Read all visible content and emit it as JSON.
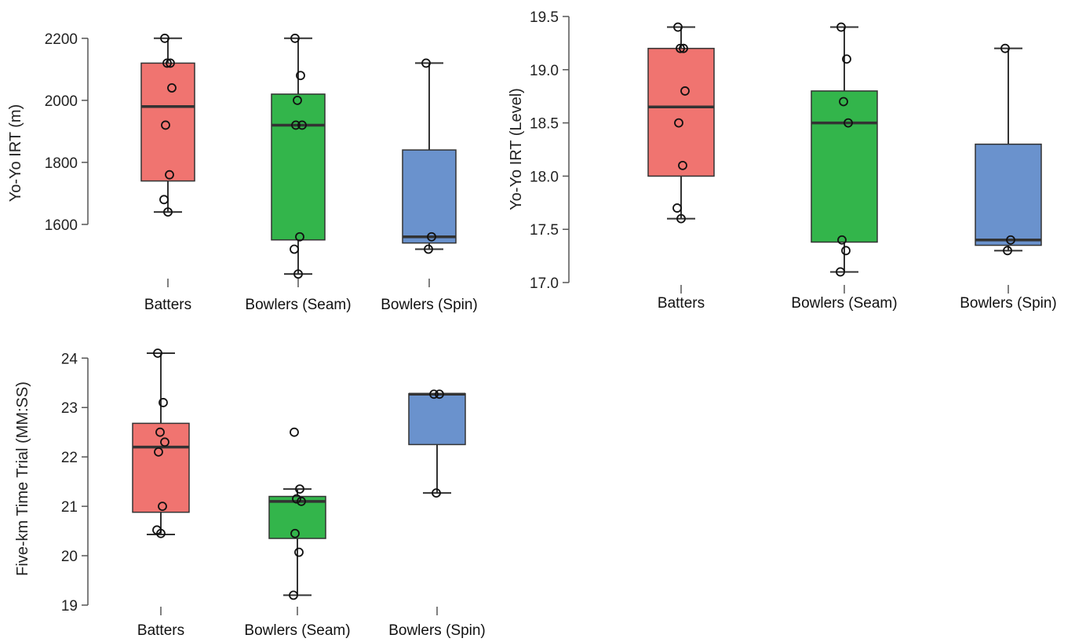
{
  "chart_data": [
    {
      "type": "box",
      "ylabel": "Yo-Yo IRT (m)",
      "categories": [
        "Batters",
        "Bowlers (Seam)",
        "Bowlers (Spin)"
      ],
      "colors": [
        "#f07470",
        "#33b54b",
        "#6a92cd"
      ],
      "ylim": [
        1410,
        2240
      ],
      "yticks": [
        {
          "value": 1600,
          "label": "1600"
        },
        {
          "value": 1800,
          "label": "1800"
        },
        {
          "value": 2000,
          "label": "2000"
        },
        {
          "value": 2200,
          "label": "2200"
        }
      ],
      "boxes": [
        {
          "whisker_low": 1640,
          "q1": 1740,
          "median": 1980,
          "q3": 2120,
          "whisker_high": 2200
        },
        {
          "whisker_low": 1440,
          "q1": 1550,
          "median": 1920,
          "q3": 2020,
          "whisker_high": 2200
        },
        {
          "whisker_low": 1520,
          "q1": 1540,
          "median": 1560,
          "q3": 1840,
          "whisker_high": 2120
        }
      ],
      "points": [
        [
          2200,
          2120,
          2120,
          2040,
          1920,
          1760,
          1680,
          1640
        ],
        [
          2200,
          2080,
          2000,
          1920,
          1920,
          1560,
          1520,
          1440
        ],
        [
          2120,
          1560,
          1520
        ]
      ]
    },
    {
      "type": "box",
      "ylabel": "Yo-Yo IRT (Level)",
      "categories": [
        "Batters",
        "Bowlers (Seam)",
        "Bowlers (Spin)"
      ],
      "colors": [
        "#f07470",
        "#33b54b",
        "#6a92cd"
      ],
      "ylim": [
        17.0,
        19.5
      ],
      "yticks": [
        {
          "value": 17.0,
          "label": "17.0"
        },
        {
          "value": 17.5,
          "label": "17.5"
        },
        {
          "value": 18.0,
          "label": "18.0"
        },
        {
          "value": 18.5,
          "label": "18.5"
        },
        {
          "value": 19.0,
          "label": "19.0"
        },
        {
          "value": 19.5,
          "label": "19.5"
        }
      ],
      "boxes": [
        {
          "whisker_low": 17.6,
          "q1": 18.0,
          "median": 18.65,
          "q3": 19.2,
          "whisker_high": 19.4
        },
        {
          "whisker_low": 17.1,
          "q1": 17.38,
          "median": 18.5,
          "q3": 18.8,
          "whisker_high": 19.4
        },
        {
          "whisker_low": 17.3,
          "q1": 17.35,
          "median": 17.4,
          "q3": 18.3,
          "whisker_high": 19.2
        }
      ],
      "points": [
        [
          19.4,
          19.2,
          19.2,
          18.8,
          18.5,
          18.1,
          17.7,
          17.6
        ],
        [
          19.4,
          19.1,
          18.7,
          18.5,
          17.4,
          17.3,
          17.1
        ],
        [
          19.2,
          17.4,
          17.3
        ]
      ]
    },
    {
      "type": "box",
      "ylabel": "Five-km Time Trial (MM:SS)",
      "categories": [
        "Batters",
        "Bowlers (Seam)",
        "Bowlers (Spin)"
      ],
      "colors": [
        "#f07470",
        "#33b54b",
        "#6a92cd"
      ],
      "ylim": [
        19,
        24.1
      ],
      "yticks": [
        {
          "value": 19,
          "label": "19"
        },
        {
          "value": 20,
          "label": "20"
        },
        {
          "value": 21,
          "label": "21"
        },
        {
          "value": 22,
          "label": "22"
        },
        {
          "value": 23,
          "label": "23"
        },
        {
          "value": 24,
          "label": "24"
        }
      ],
      "boxes": [
        {
          "whisker_low": 20.43,
          "q1": 20.88,
          "median": 22.2,
          "q3": 22.68,
          "whisker_high": 24.1
        },
        {
          "whisker_low": 19.2,
          "q1": 20.35,
          "median": 21.1,
          "q3": 21.2,
          "whisker_high": 21.35
        },
        {
          "whisker_low": 21.27,
          "q1": 22.25,
          "median": 23.27,
          "q3": 23.28,
          "whisker_high": 23.28
        }
      ],
      "points": [
        [
          24.1,
          23.1,
          22.5,
          22.3,
          22.1,
          21.0,
          20.52,
          20.45
        ],
        [
          22.5,
          21.35,
          21.15,
          21.1,
          20.45,
          20.07,
          19.2
        ],
        [
          23.27,
          23.27,
          21.27
        ]
      ]
    }
  ]
}
